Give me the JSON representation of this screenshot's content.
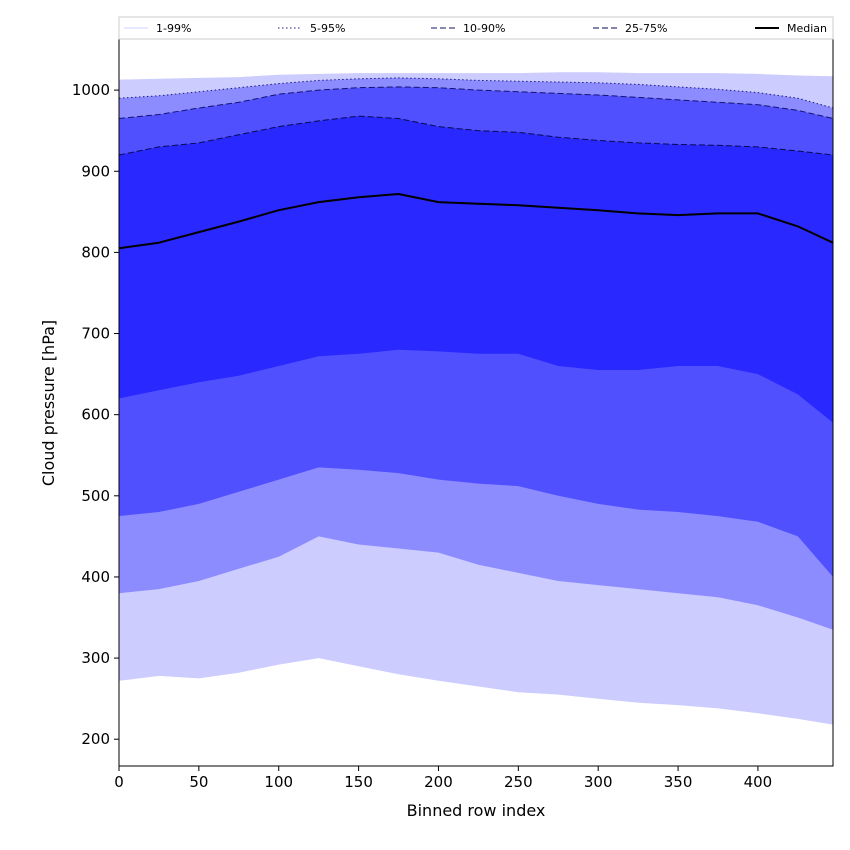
{
  "chart_data": {
    "type": "area",
    "xlabel": "Binned row index",
    "ylabel": "Cloud pressure [hPa]",
    "xlim": [
      0,
      447
    ],
    "ylim": [
      167,
      1063
    ],
    "xticks": [
      0,
      50,
      100,
      150,
      200,
      250,
      300,
      350,
      400
    ],
    "yticks": [
      200,
      300,
      400,
      500,
      600,
      700,
      800,
      900,
      1000
    ],
    "grid": false,
    "legend_position": "top",
    "x": [
      0,
      25,
      50,
      75,
      100,
      125,
      150,
      175,
      200,
      225,
      250,
      275,
      300,
      325,
      350,
      375,
      400,
      425,
      447
    ],
    "bands": [
      {
        "name": "1-99%",
        "fill_color": "#ccccff",
        "line_color": "#ccccff",
        "line_style": "solid",
        "lower": [
          272,
          278,
          275,
          282,
          292,
          300,
          290,
          280,
          272,
          265,
          258,
          255,
          250,
          245,
          242,
          238,
          232,
          225,
          218
        ],
        "upper": [
          1013,
          1014,
          1015,
          1016,
          1019,
          1020,
          1021,
          1021,
          1021,
          1021,
          1021,
          1022,
          1022,
          1021,
          1021,
          1021,
          1020,
          1018,
          1017
        ]
      },
      {
        "name": "5-95%",
        "fill_color": "#8c8cff",
        "line_color": "#1a1a80",
        "line_style": "dotted",
        "lower": [
          380,
          385,
          395,
          410,
          425,
          450,
          440,
          435,
          430,
          415,
          405,
          395,
          390,
          385,
          380,
          375,
          365,
          350,
          335
        ],
        "upper": [
          990,
          993,
          998,
          1003,
          1008,
          1012,
          1014,
          1015,
          1014,
          1012,
          1011,
          1010,
          1009,
          1007,
          1004,
          1001,
          997,
          990,
          978
        ]
      },
      {
        "name": "10-90%",
        "fill_color": "#5050ff",
        "line_color": "#14146e",
        "line_style": "dashed",
        "lower": [
          475,
          480,
          490,
          505,
          520,
          535,
          532,
          528,
          520,
          515,
          512,
          500,
          490,
          483,
          480,
          475,
          468,
          450,
          400
        ],
        "upper": [
          965,
          970,
          978,
          985,
          995,
          1000,
          1003,
          1004,
          1003,
          1000,
          998,
          996,
          994,
          991,
          988,
          985,
          982,
          975,
          965
        ]
      },
      {
        "name": "25-75%",
        "fill_color": "#2828ff",
        "line_color": "#0a0a50",
        "line_style": "dashed",
        "lower": [
          620,
          630,
          640,
          648,
          660,
          672,
          675,
          680,
          678,
          675,
          675,
          660,
          655,
          655,
          660,
          660,
          650,
          625,
          590
        ],
        "upper": [
          920,
          930,
          935,
          945,
          955,
          962,
          968,
          965,
          955,
          950,
          948,
          942,
          938,
          935,
          933,
          932,
          930,
          925,
          920
        ]
      }
    ],
    "series": [
      {
        "name": "Median",
        "color": "#000000",
        "values": [
          805,
          812,
          825,
          838,
          852,
          862,
          868,
          872,
          862,
          860,
          858,
          855,
          852,
          848,
          846,
          848,
          848,
          832,
          812
        ]
      }
    ]
  }
}
